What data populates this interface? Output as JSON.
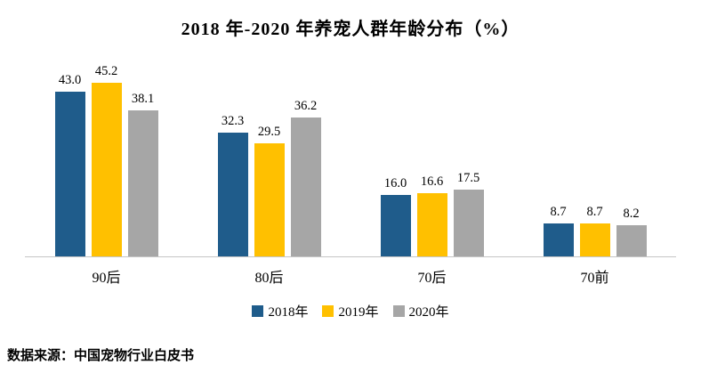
{
  "source": "数据来源：中国宠物行业白皮书",
  "chart_data": {
    "type": "bar",
    "title": "2018 年-2020 年养宠人群年龄分布（%）",
    "categories": [
      "90后",
      "80后",
      "70后",
      "70前"
    ],
    "series": [
      {
        "name": "2018年",
        "color": "#1F5C8B",
        "values": [
          43.0,
          32.3,
          16.0,
          8.7
        ]
      },
      {
        "name": "2019年",
        "color": "#FFC000",
        "values": [
          45.2,
          29.5,
          16.6,
          8.7
        ]
      },
      {
        "name": "2020年",
        "color": "#A6A6A6",
        "values": [
          38.1,
          36.2,
          17.5,
          8.2
        ]
      }
    ],
    "xlabel": "",
    "ylabel": "",
    "ylim": [
      0,
      46
    ],
    "grid": false,
    "legend_position": "bottom",
    "value_labels": true
  }
}
